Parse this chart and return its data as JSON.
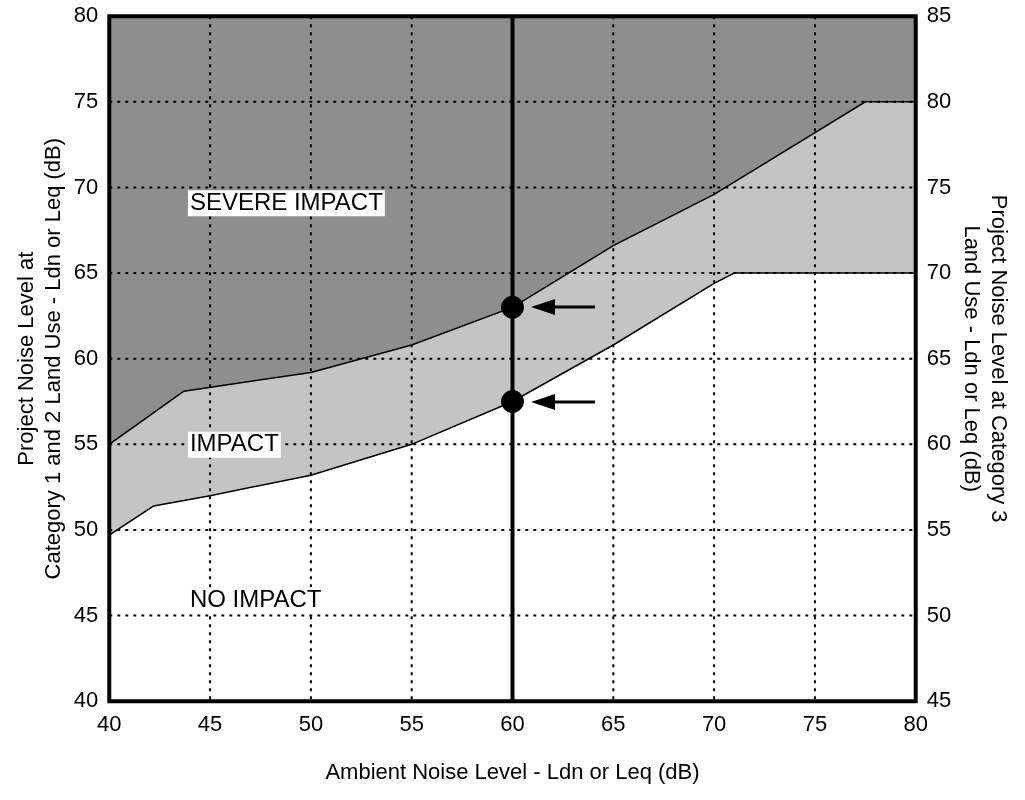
{
  "chart_data": {
    "type": "area",
    "xlabel": "Ambient Noise Level - Ldn or Leq (dB)",
    "ylabel": "Project Noise Level at\nCategory 1 and 2 Land Use - Ldn or Leq (dB)",
    "y2label": "Project Noise Level at Category 3\nLand Use - Ldn or Leq (dB)",
    "xlim": [
      40,
      80
    ],
    "xticks": [
      40,
      45,
      50,
      55,
      60,
      65,
      70,
      75,
      80
    ],
    "ylim": [
      40,
      80
    ],
    "yticks": [
      40,
      45,
      50,
      55,
      60,
      65,
      70,
      75,
      80
    ],
    "y2lim": [
      45,
      85
    ],
    "y2ticks": [
      45,
      50,
      55,
      60,
      65,
      70,
      75,
      80,
      85
    ],
    "grid": true,
    "legend": false,
    "series": [
      {
        "color": "#c4c4c4",
        "x": [
          40,
          43.7,
          50,
          55,
          60,
          65,
          70,
          77.5,
          80
        ],
        "values": [
          55,
          58.1,
          59.2,
          60.8,
          63,
          66.6,
          69.6,
          75,
          75
        ]
      },
      {
        "color": "#ffffff",
        "x": [
          40,
          42.2,
          45,
          50,
          55,
          60,
          65,
          70,
          71,
          80
        ],
        "values": [
          49.7,
          51.4,
          52,
          53.2,
          55,
          57.5,
          60.8,
          64.4,
          65,
          65
        ]
      },
      {
        "type": "scatter",
        "color": "#000000",
        "marker": "circle",
        "x": [
          60,
          60
        ],
        "values": [
          63,
          57.5
        ]
      }
    ],
    "bands": [
      {
        "axis": "y",
        "from": 55,
        "to": 80,
        "color": "#8e8e8e"
      }
    ],
    "ref_lines": [
      {
        "axis": "x",
        "value": 60,
        "color": "#000000"
      }
    ],
    "annotations": [
      "SEVERE IMPACT",
      "IMPACT",
      "NO IMPACT"
    ]
  }
}
